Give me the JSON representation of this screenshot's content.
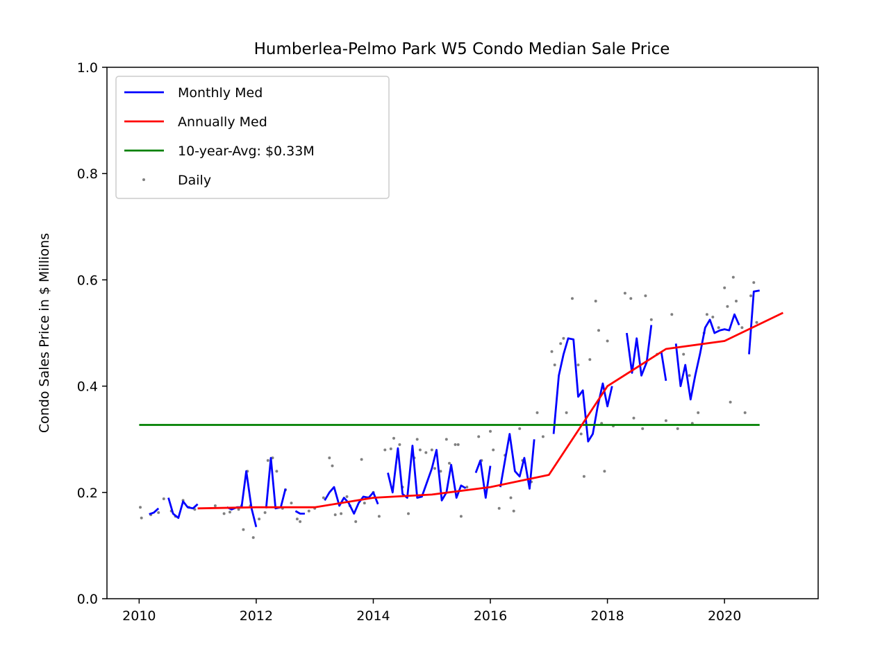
{
  "chart_data": {
    "type": "line",
    "title": "Humberlea-Pelmo Park W5 Condo Median Sale Price",
    "xlabel": "",
    "ylabel": "Condo Sales Price in $ Millions",
    "xlim": [
      2009.45,
      2021.6
    ],
    "ylim": [
      0.0,
      1.0
    ],
    "x_ticks": [
      2010,
      2012,
      2014,
      2016,
      2018,
      2020
    ],
    "x_tick_labels": [
      "2010",
      "2012",
      "2014",
      "2016",
      "2018",
      "2020"
    ],
    "y_ticks": [
      0.0,
      0.2,
      0.4,
      0.6,
      0.8,
      1.0
    ],
    "y_tick_labels": [
      "0.0",
      "0.2",
      "0.4",
      "0.6",
      "0.8",
      "1.0"
    ],
    "grid": false,
    "legend": {
      "placement": "top-left",
      "entries": [
        "Monthly Med",
        "Annually Med",
        "10-year-Avg: $0.33M",
        "Daily"
      ]
    },
    "colors": {
      "monthly": "#0000ff",
      "annual": "#ff0000",
      "avg": "#008000",
      "daily": "#808080"
    },
    "series": [
      {
        "name": "Monthly Med",
        "style": "line",
        "segments": [
          [
            [
              2010.17,
              0.159
            ],
            [
              2010.25,
              0.162
            ],
            [
              2010.33,
              0.17
            ]
          ],
          [
            [
              2010.5,
              0.19
            ],
            [
              2010.58,
              0.16
            ],
            [
              2010.67,
              0.152
            ],
            [
              2010.75,
              0.183
            ],
            [
              2010.83,
              0.172
            ],
            [
              2010.92,
              0.17
            ],
            [
              2011.0,
              0.178
            ]
          ],
          [
            [
              2011.5,
              0.172
            ],
            [
              2011.58,
              0.168
            ],
            [
              2011.67,
              0.172
            ],
            [
              2011.75,
              0.172
            ],
            [
              2011.83,
              0.24
            ],
            [
              2011.92,
              0.17
            ],
            [
              2012.0,
              0.135
            ]
          ],
          [
            [
              2012.17,
              0.17
            ],
            [
              2012.25,
              0.265
            ],
            [
              2012.33,
              0.17
            ],
            [
              2012.42,
              0.172
            ],
            [
              2012.5,
              0.207
            ]
          ],
          [
            [
              2012.67,
              0.165
            ],
            [
              2012.75,
              0.16
            ],
            [
              2012.83,
              0.16
            ]
          ],
          [
            [
              2013.17,
              0.185
            ],
            [
              2013.25,
              0.2
            ],
            [
              2013.33,
              0.21
            ],
            [
              2013.42,
              0.175
            ],
            [
              2013.5,
              0.19
            ],
            [
              2013.58,
              0.18
            ],
            [
              2013.67,
              0.16
            ],
            [
              2013.75,
              0.18
            ],
            [
              2013.83,
              0.192
            ],
            [
              2013.92,
              0.19
            ],
            [
              2014.0,
              0.2
            ],
            [
              2014.08,
              0.178
            ]
          ],
          [
            [
              2014.25,
              0.237
            ],
            [
              2014.33,
              0.2
            ],
            [
              2014.42,
              0.283
            ],
            [
              2014.5,
              0.197
            ],
            [
              2014.58,
              0.19
            ],
            [
              2014.67,
              0.288
            ],
            [
              2014.75,
              0.19
            ],
            [
              2014.83,
              0.192
            ],
            [
              2014.92,
              0.22
            ],
            [
              2015.0,
              0.245
            ],
            [
              2015.08,
              0.28
            ],
            [
              2015.17,
              0.185
            ],
            [
              2015.25,
              0.2
            ],
            [
              2015.33,
              0.252
            ],
            [
              2015.42,
              0.19
            ],
            [
              2015.5,
              0.213
            ],
            [
              2015.58,
              0.208
            ]
          ],
          [
            [
              2015.75,
              0.237
            ],
            [
              2015.83,
              0.26
            ],
            [
              2015.92,
              0.19
            ],
            [
              2016.0,
              0.25
            ]
          ],
          [
            [
              2016.17,
              0.21
            ],
            [
              2016.25,
              0.26
            ],
            [
              2016.33,
              0.31
            ],
            [
              2016.42,
              0.24
            ],
            [
              2016.5,
              0.23
            ],
            [
              2016.58,
              0.265
            ],
            [
              2016.67,
              0.207
            ],
            [
              2016.75,
              0.3
            ]
          ],
          [
            [
              2017.08,
              0.31
            ],
            [
              2017.17,
              0.42
            ],
            [
              2017.25,
              0.46
            ],
            [
              2017.33,
              0.49
            ],
            [
              2017.42,
              0.488
            ],
            [
              2017.5,
              0.38
            ],
            [
              2017.58,
              0.392
            ],
            [
              2017.67,
              0.296
            ],
            [
              2017.75,
              0.31
            ],
            [
              2017.83,
              0.36
            ],
            [
              2017.92,
              0.405
            ],
            [
              2018.0,
              0.362
            ],
            [
              2018.08,
              0.4
            ]
          ],
          [
            [
              2018.33,
              0.5
            ],
            [
              2018.42,
              0.425
            ],
            [
              2018.5,
              0.49
            ],
            [
              2018.58,
              0.42
            ],
            [
              2018.67,
              0.445
            ],
            [
              2018.75,
              0.515
            ]
          ],
          [
            [
              2018.92,
              0.465
            ],
            [
              2019.0,
              0.41
            ]
          ],
          [
            [
              2019.17,
              0.48
            ],
            [
              2019.25,
              0.4
            ],
            [
              2019.33,
              0.44
            ],
            [
              2019.42,
              0.375
            ],
            [
              2019.5,
              0.42
            ],
            [
              2019.58,
              0.46
            ],
            [
              2019.67,
              0.51
            ],
            [
              2019.75,
              0.525
            ],
            [
              2019.83,
              0.5
            ],
            [
              2019.92,
              0.505
            ],
            [
              2020.0,
              0.507
            ],
            [
              2020.08,
              0.505
            ],
            [
              2020.17,
              0.535
            ],
            [
              2020.25,
              0.515
            ]
          ],
          [
            [
              2020.42,
              0.46
            ],
            [
              2020.5,
              0.578
            ],
            [
              2020.6,
              0.58
            ]
          ]
        ]
      },
      {
        "name": "Annually Med",
        "style": "line",
        "points": [
          [
            2011.0,
            0.17
          ],
          [
            2012.0,
            0.172
          ],
          [
            2013.0,
            0.172
          ],
          [
            2014.0,
            0.19
          ],
          [
            2015.0,
            0.196
          ],
          [
            2016.0,
            0.21
          ],
          [
            2017.0,
            0.233
          ],
          [
            2018.0,
            0.4
          ],
          [
            2019.0,
            0.47
          ],
          [
            2020.0,
            0.485
          ],
          [
            2021.0,
            0.538
          ]
        ]
      },
      {
        "name": "10-year-Avg: $0.33M",
        "style": "line",
        "points": [
          [
            2010.0,
            0.327
          ],
          [
            2020.6,
            0.327
          ]
        ]
      },
      {
        "name": "Daily",
        "style": "scatter",
        "points": [
          [
            2010.02,
            0.172
          ],
          [
            2010.04,
            0.152
          ],
          [
            2010.2,
            0.158
          ],
          [
            2010.33,
            0.162
          ],
          [
            2010.42,
            0.188
          ],
          [
            2010.55,
            0.165
          ],
          [
            2010.62,
            0.155
          ],
          [
            2010.75,
            0.185
          ],
          [
            2010.85,
            0.172
          ],
          [
            2010.95,
            0.168
          ],
          [
            2011.3,
            0.175
          ],
          [
            2011.45,
            0.16
          ],
          [
            2011.55,
            0.163
          ],
          [
            2011.7,
            0.168
          ],
          [
            2011.75,
            0.175
          ],
          [
            2011.78,
            0.13
          ],
          [
            2011.85,
            0.24
          ],
          [
            2011.9,
            0.175
          ],
          [
            2011.95,
            0.115
          ],
          [
            2012.05,
            0.15
          ],
          [
            2012.15,
            0.162
          ],
          [
            2012.2,
            0.26
          ],
          [
            2012.28,
            0.265
          ],
          [
            2012.35,
            0.24
          ],
          [
            2012.45,
            0.17
          ],
          [
            2012.5,
            0.205
          ],
          [
            2012.6,
            0.18
          ],
          [
            2012.7,
            0.15
          ],
          [
            2012.75,
            0.145
          ],
          [
            2012.9,
            0.165
          ],
          [
            2013.0,
            0.17
          ],
          [
            2013.15,
            0.19
          ],
          [
            2013.25,
            0.265
          ],
          [
            2013.3,
            0.25
          ],
          [
            2013.35,
            0.158
          ],
          [
            2013.45,
            0.16
          ],
          [
            2013.55,
            0.192
          ],
          [
            2013.6,
            0.175
          ],
          [
            2013.7,
            0.145
          ],
          [
            2013.8,
            0.262
          ],
          [
            2013.85,
            0.18
          ],
          [
            2013.9,
            0.19
          ],
          [
            2014.0,
            0.2
          ],
          [
            2014.1,
            0.155
          ],
          [
            2014.2,
            0.28
          ],
          [
            2014.3,
            0.282
          ],
          [
            2014.35,
            0.302
          ],
          [
            2014.45,
            0.29
          ],
          [
            2014.5,
            0.21
          ],
          [
            2014.6,
            0.16
          ],
          [
            2014.7,
            0.265
          ],
          [
            2014.75,
            0.3
          ],
          [
            2014.8,
            0.28
          ],
          [
            2014.9,
            0.275
          ],
          [
            2015.0,
            0.28
          ],
          [
            2015.05,
            0.245
          ],
          [
            2015.15,
            0.24
          ],
          [
            2015.25,
            0.3
          ],
          [
            2015.3,
            0.255
          ],
          [
            2015.4,
            0.29
          ],
          [
            2015.45,
            0.29
          ],
          [
            2015.5,
            0.155
          ],
          [
            2015.6,
            0.21
          ],
          [
            2015.8,
            0.305
          ],
          [
            2015.85,
            0.26
          ],
          [
            2016.0,
            0.315
          ],
          [
            2016.05,
            0.28
          ],
          [
            2016.15,
            0.17
          ],
          [
            2016.25,
            0.27
          ],
          [
            2016.35,
            0.19
          ],
          [
            2016.4,
            0.165
          ],
          [
            2016.5,
            0.32
          ],
          [
            2016.55,
            0.26
          ],
          [
            2016.7,
            0.22
          ],
          [
            2016.8,
            0.35
          ],
          [
            2016.9,
            0.305
          ],
          [
            2017.05,
            0.465
          ],
          [
            2017.1,
            0.44
          ],
          [
            2017.2,
            0.48
          ],
          [
            2017.25,
            0.49
          ],
          [
            2017.3,
            0.35
          ],
          [
            2017.4,
            0.565
          ],
          [
            2017.5,
            0.44
          ],
          [
            2017.55,
            0.31
          ],
          [
            2017.6,
            0.23
          ],
          [
            2017.7,
            0.45
          ],
          [
            2017.8,
            0.56
          ],
          [
            2017.85,
            0.505
          ],
          [
            2017.9,
            0.33
          ],
          [
            2017.95,
            0.24
          ],
          [
            2018.0,
            0.485
          ],
          [
            2018.1,
            0.325
          ],
          [
            2018.3,
            0.575
          ],
          [
            2018.4,
            0.565
          ],
          [
            2018.45,
            0.34
          ],
          [
            2018.6,
            0.32
          ],
          [
            2018.65,
            0.57
          ],
          [
            2018.75,
            0.525
          ],
          [
            2018.85,
            0.46
          ],
          [
            2019.0,
            0.335
          ],
          [
            2019.1,
            0.535
          ],
          [
            2019.2,
            0.32
          ],
          [
            2019.3,
            0.46
          ],
          [
            2019.4,
            0.42
          ],
          [
            2019.45,
            0.33
          ],
          [
            2019.55,
            0.35
          ],
          [
            2019.65,
            0.5
          ],
          [
            2019.7,
            0.535
          ],
          [
            2019.8,
            0.53
          ],
          [
            2019.9,
            0.51
          ],
          [
            2020.0,
            0.585
          ],
          [
            2020.05,
            0.55
          ],
          [
            2020.1,
            0.37
          ],
          [
            2020.15,
            0.605
          ],
          [
            2020.2,
            0.56
          ],
          [
            2020.3,
            0.51
          ],
          [
            2020.35,
            0.35
          ],
          [
            2020.45,
            0.57
          ],
          [
            2020.5,
            0.595
          ],
          [
            2020.55,
            0.52
          ]
        ]
      }
    ]
  }
}
